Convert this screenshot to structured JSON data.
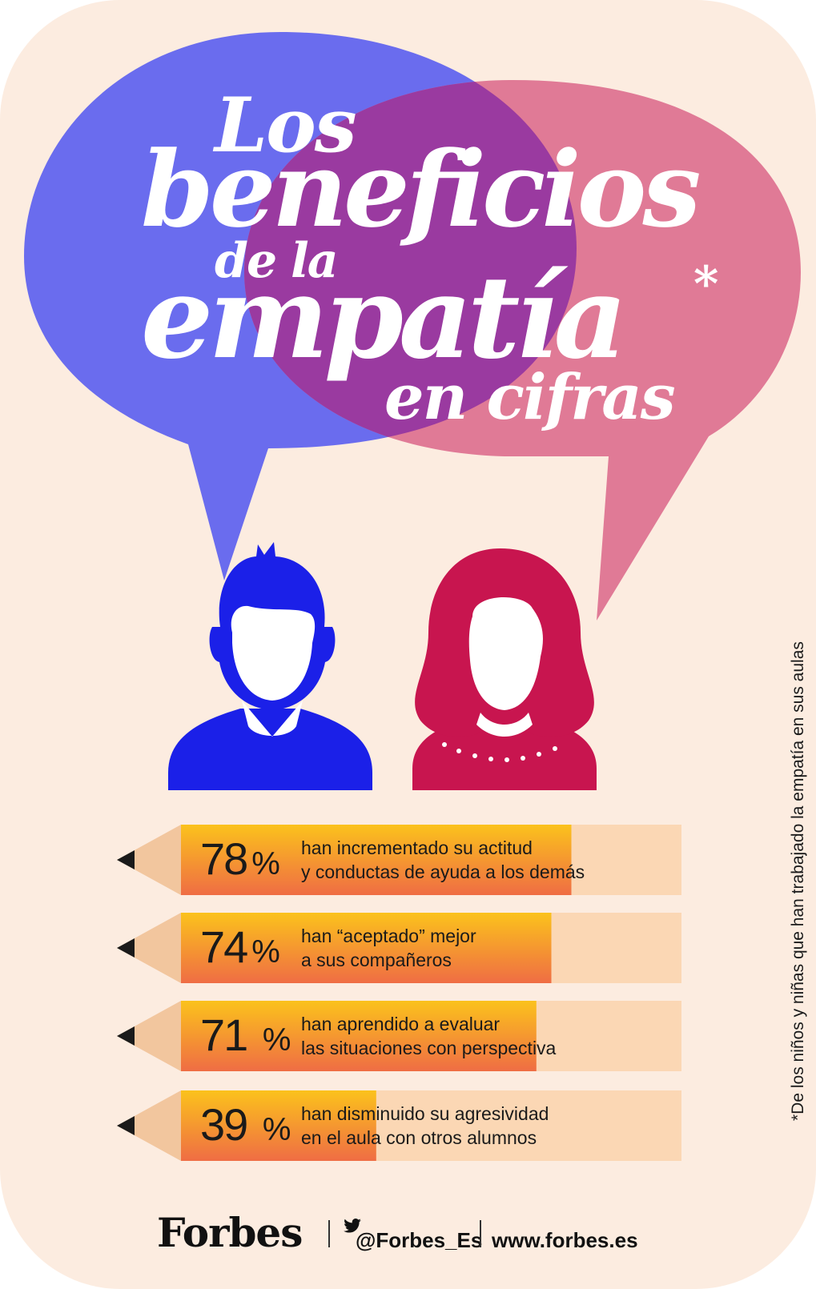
{
  "colors": {
    "background": "#fcece0",
    "blue_bubble": "#6a6cee",
    "pink_bubble": "#e07a96",
    "overlap": "#9a3aa0",
    "boy": "#1b20e8",
    "girl": "#c8154f",
    "pencil_yellow": "#fbbf1b",
    "pencil_orange": "#ef6d44",
    "pencil_pale": "#fbd7b4"
  },
  "title": {
    "line1": "Los",
    "line2": "beneficios",
    "line3": "de la",
    "line4": "empatía",
    "asterisk": "*",
    "line5": "en cifras"
  },
  "stats": [
    {
      "value": "78",
      "unit": "%",
      "fraction": 0.78,
      "line1": "han incrementado su actitud",
      "line2": "y conductas de ayuda a los demás"
    },
    {
      "value": "74",
      "unit": "%",
      "fraction": 0.74,
      "line1": "han “aceptado” mejor",
      "line2": "a sus compañeros"
    },
    {
      "value": "71 ",
      "unit": "%",
      "fraction": 0.71,
      "line1": "han aprendido a evaluar",
      "line2": "las situaciones con perspectiva"
    },
    {
      "value": "39 ",
      "unit": "%",
      "fraction": 0.39,
      "line1": "han disminuido su agresividad",
      "line2": "en el aula con otros alumnos"
    }
  ],
  "footnote": "*De los niños y niñas que han trabajado la empatía en sus aulas",
  "footer": {
    "brand": "Forbes",
    "handle": "@Forbes_Es",
    "website": "www.forbes.es",
    "icon": "twitter-bird-icon"
  }
}
